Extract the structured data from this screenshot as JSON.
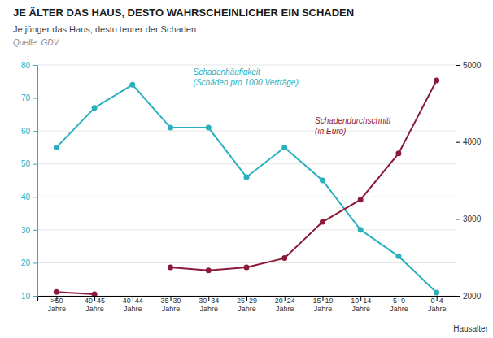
{
  "chart_data": {
    "type": "line",
    "title": "JE ÄLTER DAS HAUS, DESTO WAHRSCHEINLICHER EIN SCHADEN",
    "subtitle": "Je jünger das Haus, desto teurer der Schaden",
    "source": "Quelle: GDV",
    "xlabel": "Hausalter",
    "categories": [
      ">50\nJahre",
      "49–45\nJahre",
      "40–44\nJahre",
      "35–39\nJahre",
      "30–34\nJahre",
      "25–29\nJahre",
      "20–24\nJahre",
      "15–19\nJahre",
      "10–14\nJahre",
      "5–9\nJahre",
      "0–4\nJahre"
    ],
    "series": [
      {
        "name": "Schadenhäufigkeit\n(Schäden pro 1000 Verträge)",
        "color": "#2AAFBE",
        "marker": "circle",
        "values": [
          55,
          67,
          74,
          61,
          61,
          46,
          55,
          45,
          30,
          22,
          11
        ]
      },
      {
        "name": "Schadendurchschnitt\n(in Euro)",
        "color": "#8B1A3A",
        "marker": "circle",
        "axis": "y2",
        "values": [
          2050,
          2020,
          null,
          2370,
          2330,
          2370,
          2490,
          2960,
          3250,
          3850,
          4800
        ]
      }
    ],
    "ylim": [
      10,
      80
    ],
    "yticks": [
      10,
      20,
      30,
      40,
      50,
      60,
      70,
      80
    ],
    "y2lim": [
      2000,
      5000
    ],
    "y2ticks": [
      2000,
      3000,
      4000,
      5000
    ],
    "grid": true
  }
}
